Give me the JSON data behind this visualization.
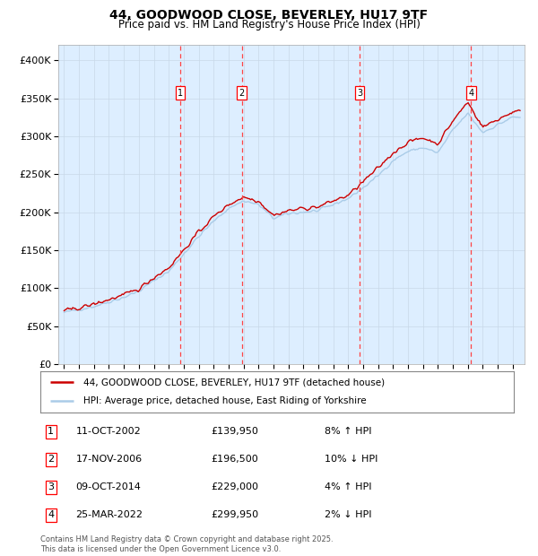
{
  "title_line1": "44, GOODWOOD CLOSE, BEVERLEY, HU17 9TF",
  "title_line2": "Price paid vs. HM Land Registry's House Price Index (HPI)",
  "ylim": [
    0,
    420000
  ],
  "yticks": [
    0,
    50000,
    100000,
    150000,
    200000,
    250000,
    300000,
    350000,
    400000
  ],
  "ytick_labels": [
    "£0",
    "£50K",
    "£100K",
    "£150K",
    "£200K",
    "£250K",
    "£300K",
    "£350K",
    "£400K"
  ],
  "xlim_start": 1994.6,
  "xlim_end": 2025.8,
  "hpi_color": "#aacce8",
  "price_color": "#cc0000",
  "plot_bg": "#ddeeff",
  "legend_house": "44, GOODWOOD CLOSE, BEVERLEY, HU17 9TF (detached house)",
  "legend_hpi": "HPI: Average price, detached house, East Riding of Yorkshire",
  "transactions": [
    {
      "num": 1,
      "date": "11-OCT-2002",
      "price": 139950,
      "pct": "8%",
      "dir": "↑",
      "year": 2002.78
    },
    {
      "num": 2,
      "date": "17-NOV-2006",
      "price": 196500,
      "pct": "10%",
      "dir": "↓",
      "year": 2006.88
    },
    {
      "num": 3,
      "date": "09-OCT-2014",
      "price": 229000,
      "pct": "4%",
      "dir": "↑",
      "year": 2014.77
    },
    {
      "num": 4,
      "date": "25-MAR-2022",
      "price": 299950,
      "pct": "2%",
      "dir": "↓",
      "year": 2022.23
    }
  ],
  "footer": "Contains HM Land Registry data © Crown copyright and database right 2025.\nThis data is licensed under the Open Government Licence v3.0.",
  "grid_color": "#c8d8e8",
  "vline_color": "#ff4444",
  "hpi_knots_x": [
    1995,
    1996,
    1997,
    1998,
    1999,
    2000,
    2001,
    2002,
    2003,
    2004,
    2005,
    2006,
    2007,
    2008,
    2009,
    2010,
    2011,
    2012,
    2013,
    2014,
    2015,
    2016,
    2017,
    2018,
    2019,
    2020,
    2021,
    2022,
    2023,
    2024,
    2025
  ],
  "hpi_knots_y": [
    68000,
    72000,
    76000,
    82000,
    88000,
    96000,
    110000,
    122000,
    145000,
    168000,
    188000,
    205000,
    215000,
    210000,
    192000,
    198000,
    200000,
    202000,
    210000,
    218000,
    232000,
    248000,
    268000,
    280000,
    285000,
    278000,
    308000,
    330000,
    305000,
    315000,
    325000
  ],
  "price_knots_x": [
    1995,
    1996,
    1997,
    1998,
    1999,
    2000,
    2001,
    2002,
    2003,
    2004,
    2005,
    2006,
    2007,
    2008,
    2009,
    2010,
    2011,
    2012,
    2013,
    2014,
    2015,
    2016,
    2017,
    2018,
    2019,
    2020,
    2021,
    2022,
    2023,
    2024,
    2025
  ],
  "price_knots_y": [
    70000,
    74000,
    79000,
    85000,
    91000,
    99000,
    114000,
    127000,
    150000,
    174000,
    194000,
    210000,
    220000,
    215000,
    196000,
    202000,
    205000,
    207000,
    215000,
    222000,
    240000,
    258000,
    278000,
    292000,
    298000,
    290000,
    320000,
    345000,
    312000,
    322000,
    332000
  ]
}
